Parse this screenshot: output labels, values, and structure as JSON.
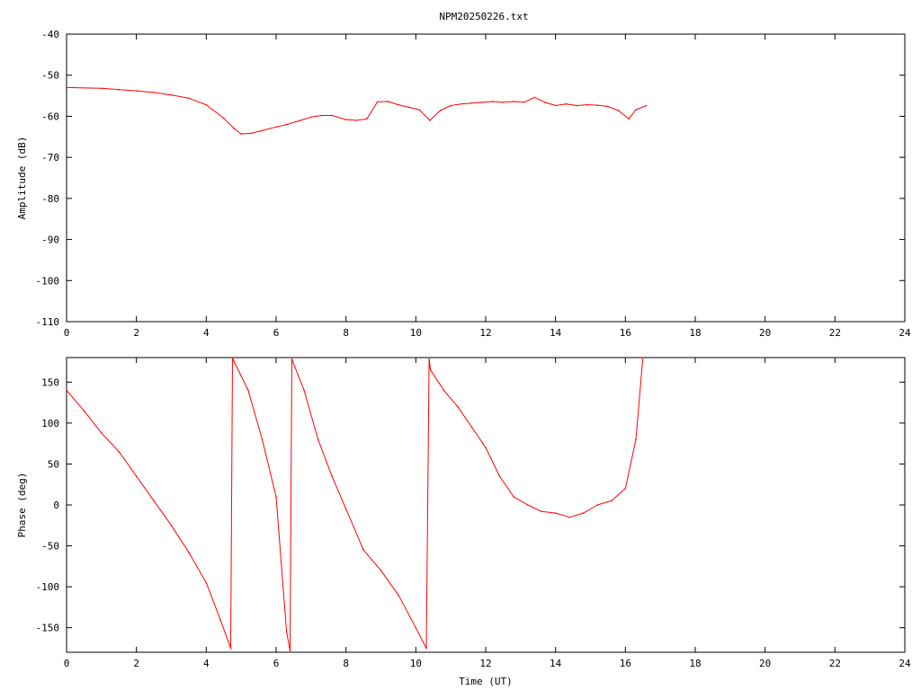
{
  "chart_data": [
    {
      "type": "line",
      "title": "NPM20250226.txt",
      "xlabel": "",
      "ylabel": "Amplitude (dB)",
      "xlim": [
        0,
        24
      ],
      "ylim": [
        -110,
        -40
      ],
      "x_ticks": [
        "0",
        "2",
        "4",
        "6",
        "8",
        "10",
        "12",
        "14",
        "16",
        "18",
        "20",
        "22",
        "24"
      ],
      "y_ticks": [
        "-40",
        "-50",
        "-60",
        "-70",
        "-80",
        "-90",
        "-100",
        "-110"
      ],
      "color": "#ff0000",
      "series": [
        {
          "x": [
            0,
            0.5,
            1,
            1.5,
            2,
            2.5,
            3,
            3.5,
            4,
            4.5,
            4.8,
            5,
            5.3,
            5.6,
            6,
            6.3,
            6.7,
            7,
            7.3,
            7.6,
            8,
            8.3,
            8.6,
            8.9,
            9.2,
            9.5,
            9.8,
            10.1,
            10.4,
            10.7,
            11,
            11.3,
            11.6,
            11.9,
            12.2,
            12.5,
            12.8,
            13.1,
            13.4,
            13.7,
            14,
            14.3,
            14.6,
            14.9,
            15.2,
            15.5,
            15.8,
            16.1,
            16.3,
            16.6
          ],
          "values": [
            -53,
            -53.1,
            -53.2,
            -53.5,
            -53.8,
            -54.2,
            -54.8,
            -55.6,
            -57.2,
            -60.5,
            -63,
            -64.3,
            -64.1,
            -63.5,
            -62.6,
            -62,
            -61,
            -60.2,
            -59.8,
            -59.8,
            -60.8,
            -61,
            -60.6,
            -56.5,
            -56.4,
            -57.2,
            -57.8,
            -58.4,
            -61,
            -58.6,
            -57.4,
            -57,
            -56.8,
            -56.6,
            -56.4,
            -56.6,
            -56.4,
            -56.6,
            -55.4,
            -56.6,
            -57.4,
            -57,
            -57.4,
            -57.2,
            -57.3,
            -57.6,
            -58.6,
            -60.6,
            -58.4,
            -57.4
          ]
        }
      ]
    },
    {
      "type": "line",
      "title": "",
      "xlabel": "Time (UT)",
      "ylabel": "Phase (deg)",
      "xlim": [
        0,
        24
      ],
      "ylim": [
        -180,
        180
      ],
      "x_ticks": [
        "0",
        "2",
        "4",
        "6",
        "8",
        "10",
        "12",
        "14",
        "16",
        "18",
        "20",
        "22",
        "24"
      ],
      "y_ticks": [
        "150",
        "100",
        "50",
        "0",
        "-50",
        "-100",
        "-150"
      ],
      "color": "#ff0000",
      "series": [
        {
          "x": [
            0,
            0.5,
            1,
            1.5,
            2,
            2.5,
            3,
            3.5,
            4,
            4.4,
            4.7,
            4.75,
            4.8,
            5.2,
            5.6,
            6,
            6.3,
            6.4,
            6.45,
            6.8,
            7.2,
            7.6,
            8,
            8.5,
            9,
            9.5,
            10,
            10.3,
            10.38,
            10.42,
            10.8,
            11.2,
            11.6,
            12,
            12.4,
            12.8,
            13.2,
            13.6,
            14,
            14.4,
            14.8,
            15.2,
            15.6,
            16,
            16.3,
            16.5
          ],
          "values": [
            140,
            115,
            88,
            65,
            35,
            5,
            -25,
            -58,
            -95,
            -140,
            -175,
            180,
            175,
            140,
            80,
            10,
            -155,
            -178,
            178,
            140,
            80,
            35,
            -5,
            -55,
            -80,
            -110,
            -150,
            -175,
            178,
            165,
            140,
            120,
            95,
            70,
            35,
            10,
            0,
            -8,
            -10,
            -15,
            -10,
            0,
            5,
            20,
            80,
            180
          ]
        }
      ]
    }
  ]
}
